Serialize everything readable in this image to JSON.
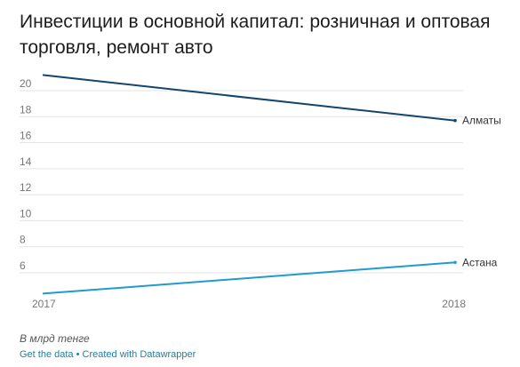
{
  "chart_data": {
    "type": "line",
    "title": "Инвестиции в основной капитал: розничная и оптовая торговля, ремонт авто",
    "x": [
      "2017",
      "2018"
    ],
    "series": [
      {
        "name": "Алматы",
        "values": [
          21.2,
          17.7
        ],
        "color": "#15446c"
      },
      {
        "name": "Астана",
        "values": [
          4.4,
          6.8
        ],
        "color": "#1f9bd1"
      }
    ],
    "ylim": [
      4,
      21
    ],
    "yticks": [
      6,
      8,
      10,
      12,
      14,
      16,
      18,
      20
    ],
    "grid": true,
    "xlabel": "",
    "ylabel": ""
  },
  "notes": "В млрд тенге",
  "footer": {
    "get_data": "Get the data",
    "separator": "•",
    "created_with": "Created with Datawrapper"
  }
}
